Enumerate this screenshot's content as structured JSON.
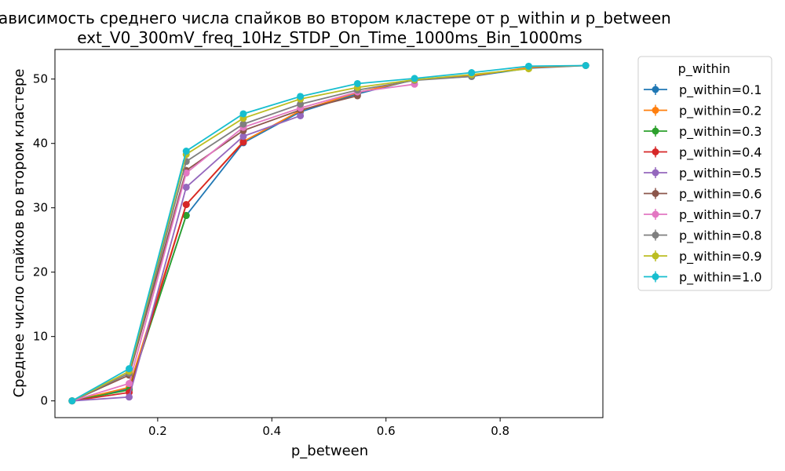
{
  "chart_data": {
    "type": "line",
    "title_line1": "Зависимость среднего числа спайков во втором кластере от p_within и p_between",
    "title_line2": "ext_V0_300mV_freq_10Hz_STDP_On_Time_1000ms_Bin_1000ms",
    "xlabel": "p_between",
    "ylabel": "Среднее число спайков во втором кластере",
    "xlim": [
      0.02,
      0.98
    ],
    "ylim": [
      -2.6,
      54.6
    ],
    "xticks": [
      0.2,
      0.4,
      0.6,
      0.8
    ],
    "yticks": [
      0,
      10,
      20,
      30,
      40,
      50
    ],
    "grid": false,
    "legend_title": "p_within",
    "legend_position": "outside-right",
    "series": [
      {
        "name": "p_within=0.1",
        "color": "#1f77b4",
        "x": [
          0.05,
          0.15,
          0.25,
          0.35,
          0.45,
          0.55,
          0.65,
          0.75,
          0.85,
          0.95
        ],
        "y": [
          0,
          1.9,
          28.8,
          40.1,
          44.9,
          47.7,
          49.9,
          50.4,
          51.7,
          52.1
        ]
      },
      {
        "name": "p_within=0.2",
        "color": "#ff7f0e",
        "x": [
          0.05,
          0.15,
          0.25,
          0.35,
          0.45,
          0.55,
          0.65,
          0.75,
          0.85,
          0.95
        ],
        "y": [
          0,
          2.1,
          30.5,
          40.3,
          45.1,
          47.9,
          49.9,
          50.5,
          51.8,
          52.1
        ]
      },
      {
        "name": "p_within=0.3",
        "color": "#2ca02c",
        "x": [
          0.05,
          0.15,
          0.25
        ],
        "y": [
          0,
          1.7,
          28.8
        ]
      },
      {
        "name": "p_within=0.4",
        "color": "#d62728",
        "x": [
          0.05,
          0.15,
          0.25,
          0.35
        ],
        "y": [
          0,
          1.3,
          30.5,
          40.2
        ]
      },
      {
        "name": "p_within=0.5",
        "color": "#9467bd",
        "x": [
          0.05,
          0.15,
          0.25,
          0.35,
          0.45
        ],
        "y": [
          0,
          0.6,
          33.2,
          41.1,
          44.3
        ]
      },
      {
        "name": "p_within=0.6",
        "color": "#8c564b",
        "x": [
          0.05,
          0.15,
          0.25,
          0.35,
          0.45,
          0.55
        ],
        "y": [
          0,
          4.0,
          35.8,
          42.0,
          45.2,
          47.4
        ]
      },
      {
        "name": "p_within=0.7",
        "color": "#e377c2",
        "x": [
          0.05,
          0.15,
          0.25,
          0.35,
          0.45,
          0.55,
          0.65
        ],
        "y": [
          0,
          2.7,
          35.4,
          42.5,
          45.5,
          48.0,
          49.2
        ]
      },
      {
        "name": "p_within=0.8",
        "color": "#7f7f7f",
        "x": [
          0.05,
          0.15,
          0.25,
          0.35,
          0.45,
          0.55,
          0.65,
          0.75
        ],
        "y": [
          0,
          4.3,
          37.2,
          43.0,
          46.1,
          48.3,
          49.8,
          50.4
        ]
      },
      {
        "name": "p_within=0.9",
        "color": "#bcbd22",
        "x": [
          0.05,
          0.15,
          0.25,
          0.35,
          0.45,
          0.55,
          0.65,
          0.75,
          0.85
        ],
        "y": [
          0,
          4.6,
          38.3,
          43.9,
          46.9,
          48.7,
          49.9,
          50.7,
          51.6
        ]
      },
      {
        "name": "p_within=1.0",
        "color": "#17becf",
        "x": [
          0.05,
          0.15,
          0.25,
          0.35,
          0.45,
          0.55,
          0.65,
          0.75,
          0.85,
          0.95
        ],
        "y": [
          0,
          5.0,
          38.8,
          44.6,
          47.3,
          49.3,
          50.1,
          51.0,
          52.0,
          52.1
        ]
      }
    ]
  }
}
